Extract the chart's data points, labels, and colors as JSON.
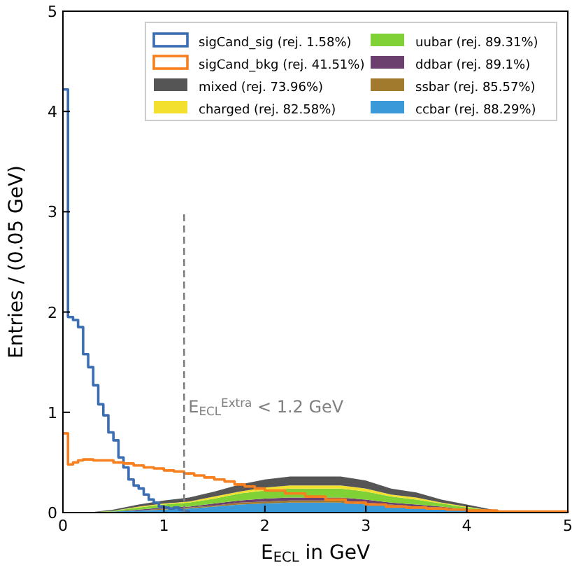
{
  "chart_data": {
    "type": "area",
    "stacked": true,
    "xlabel": "E$_{ECL}$ in GeV",
    "ylabel": "Entries / (0.05 GeV)",
    "xlim": [
      0,
      5
    ],
    "ylim": [
      0,
      5
    ],
    "xticks": [
      0,
      1,
      2,
      3,
      4,
      5
    ],
    "yticks": [
      0,
      1,
      2,
      3,
      4,
      5
    ],
    "grid": false,
    "legend": "top right",
    "ref_lines": [
      {
        "axis": "x",
        "value": 1.2,
        "label": "E$_{ECL}$$^{Extra}$ < 1.2 GeV",
        "color": "#808080",
        "line_style": "dashed"
      }
    ],
    "series": [
      {
        "name": "sigCand_sig (rej. 1.58%)",
        "type": "step",
        "color": "#3b6db3",
        "x": [
          0,
          0.05,
          0.1,
          0.15,
          0.2,
          0.25,
          0.3,
          0.35,
          0.4,
          0.45,
          0.5,
          0.55,
          0.6,
          0.65,
          0.7,
          0.75,
          0.8,
          0.85,
          0.9,
          0.95,
          1.0,
          1.05,
          1.1,
          1.15,
          1.2,
          1.25
        ],
        "values": [
          4.22,
          1.95,
          1.92,
          1.85,
          1.58,
          1.45,
          1.27,
          1.08,
          0.97,
          0.8,
          0.72,
          0.55,
          0.45,
          0.33,
          0.27,
          0.24,
          0.18,
          0.13,
          0.1,
          0.06,
          0.05,
          0.04,
          0.05,
          0.03,
          0.01,
          0
        ]
      },
      {
        "name": "sigCand_bkg (rej. 41.51%)",
        "type": "step",
        "color": "#f77f1e",
        "x": [
          0,
          0.05,
          0.1,
          0.15,
          0.2,
          0.3,
          0.4,
          0.5,
          0.6,
          0.7,
          0.8,
          0.9,
          1.0,
          1.1,
          1.2,
          1.3,
          1.4,
          1.5,
          1.6,
          1.7,
          1.8,
          1.9,
          2.0,
          2.2,
          2.4,
          2.6,
          2.8,
          3.0,
          3.2,
          3.4,
          3.6,
          3.8,
          4.0,
          4.3,
          4.6,
          5.0
        ],
        "values": [
          0.79,
          0.48,
          0.5,
          0.52,
          0.53,
          0.52,
          0.52,
          0.5,
          0.49,
          0.47,
          0.45,
          0.44,
          0.42,
          0.41,
          0.39,
          0.37,
          0.35,
          0.33,
          0.31,
          0.28,
          0.26,
          0.24,
          0.22,
          0.19,
          0.16,
          0.13,
          0.1,
          0.08,
          0.06,
          0.05,
          0.04,
          0.03,
          0.02,
          0.01,
          0.01,
          0
        ]
      },
      {
        "name": "ccbar (rej. 88.29%)",
        "color": "#3a9ad9",
        "x": [
          0,
          0.25,
          0.5,
          0.75,
          1.0,
          1.25,
          1.5,
          1.75,
          2.0,
          2.25,
          2.5,
          2.75,
          3.0,
          3.25,
          3.5,
          3.75,
          4.0,
          4.25,
          4.5,
          4.75,
          5.0
        ],
        "values": [
          0,
          0,
          0.01,
          0.02,
          0.03,
          0.04,
          0.06,
          0.08,
          0.09,
          0.1,
          0.1,
          0.1,
          0.08,
          0.07,
          0.05,
          0.04,
          0.02,
          0.01,
          0,
          0,
          0
        ]
      },
      {
        "name": "ssbar (rej. 85.57%)",
        "color": "#a17a2d",
        "x": [
          0,
          0.25,
          0.5,
          0.75,
          1.0,
          1.25,
          1.5,
          1.75,
          2.0,
          2.25,
          2.5,
          2.75,
          3.0,
          3.25,
          3.5,
          3.75,
          4.0,
          4.25,
          4.5,
          4.75,
          5.0
        ],
        "values": [
          0,
          0,
          0,
          0,
          0.01,
          0.01,
          0.01,
          0.02,
          0.02,
          0.02,
          0.02,
          0.02,
          0.02,
          0.01,
          0.01,
          0.01,
          0,
          0,
          0,
          0,
          0
        ]
      },
      {
        "name": "ddbar (rej. 89.1%)",
        "color": "#6b3f6e",
        "x": [
          0,
          0.25,
          0.5,
          0.75,
          1.0,
          1.25,
          1.5,
          1.75,
          2.0,
          2.25,
          2.5,
          2.75,
          3.0,
          3.25,
          3.5,
          3.75,
          4.0,
          4.25,
          4.5,
          4.75,
          5.0
        ],
        "values": [
          0,
          0,
          0,
          0.01,
          0.01,
          0.01,
          0.02,
          0.02,
          0.03,
          0.03,
          0.03,
          0.03,
          0.03,
          0.02,
          0.02,
          0.01,
          0.01,
          0,
          0,
          0,
          0
        ]
      },
      {
        "name": "uubar (rej. 89.31%)",
        "color": "#7fd136",
        "x": [
          0,
          0.25,
          0.5,
          0.75,
          1.0,
          1.25,
          1.5,
          1.75,
          2.0,
          2.25,
          2.5,
          2.75,
          3.0,
          3.25,
          3.5,
          3.75,
          4.0,
          4.25,
          4.5,
          4.75,
          5.0
        ],
        "values": [
          0,
          0,
          0.01,
          0.02,
          0.03,
          0.04,
          0.05,
          0.07,
          0.08,
          0.09,
          0.09,
          0.09,
          0.08,
          0.06,
          0.05,
          0.03,
          0.02,
          0.01,
          0,
          0,
          0
        ]
      },
      {
        "name": "charged (rej. 82.58%)",
        "color": "#f2df2e",
        "x": [
          0,
          0.25,
          0.5,
          0.75,
          1.0,
          1.25,
          1.5,
          1.75,
          2.0,
          2.25,
          2.5,
          2.75,
          3.0,
          3.25,
          3.5,
          3.75,
          4.0,
          4.25,
          4.5,
          4.75,
          5.0
        ],
        "values": [
          0,
          0,
          0,
          0.01,
          0.01,
          0.01,
          0.02,
          0.02,
          0.03,
          0.03,
          0.03,
          0.03,
          0.03,
          0.02,
          0.02,
          0.01,
          0.01,
          0,
          0,
          0,
          0
        ]
      },
      {
        "name": "mixed (rej. 73.96%)",
        "color": "#555555",
        "x": [
          0,
          0.25,
          0.5,
          0.75,
          1.0,
          1.25,
          1.5,
          1.75,
          2.0,
          2.25,
          2.5,
          2.75,
          3.0,
          3.25,
          3.5,
          3.75,
          4.0,
          4.25,
          4.5,
          4.75,
          5.0
        ],
        "values": [
          0,
          0,
          0.01,
          0.02,
          0.03,
          0.04,
          0.05,
          0.07,
          0.08,
          0.09,
          0.09,
          0.09,
          0.08,
          0.06,
          0.05,
          0.03,
          0.02,
          0.01,
          0,
          0,
          0
        ]
      }
    ]
  }
}
